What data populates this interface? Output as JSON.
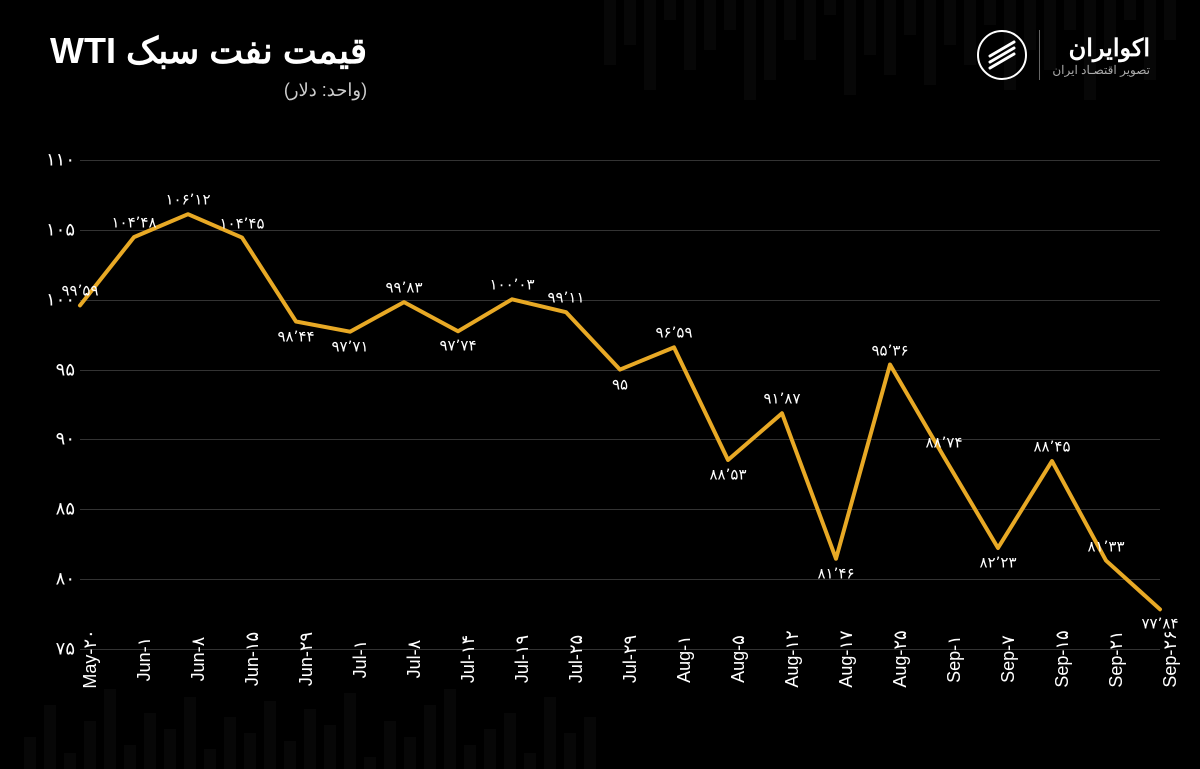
{
  "header": {
    "title": "قیمت نفت سبک WTI",
    "subtitle": "(واحد: دلار)",
    "brand_name": "اکوایران",
    "brand_tag": "تصویر اقتصـاد ایران"
  },
  "chart": {
    "type": "line",
    "line_color": "#e8a925",
    "line_width": 4,
    "background_color": "#000000",
    "grid_color": "#333333",
    "text_color": "#ffffff",
    "label_fontsize": 15,
    "tick_fontsize": 18,
    "ylim": [
      75,
      110
    ],
    "ytick_step": 5,
    "yticks_display": [
      "۷۵",
      "۸۰",
      "۸۵",
      "۹۰",
      "۹۵",
      "۱۰۰",
      "۱۰۵",
      "۱۱۰"
    ],
    "ytick_values": [
      75,
      80,
      85,
      90,
      95,
      100,
      105,
      110
    ],
    "categories": [
      "May-۲۰",
      "Jun-۱",
      "Jun-۸",
      "Jun-۱۵",
      "Jun-۲۹",
      "Jul-۱",
      "Jul-۸",
      "Jul-۱۴",
      "Jul-۱۹",
      "Jul-۲۵",
      "Jul-۲۹",
      "Aug-۱",
      "Aug-۵",
      "Aug-۱۲",
      "Aug-۱۷",
      "Aug-۲۵",
      "Sep-۱",
      "Sep-۷",
      "Sep-۱۵",
      "Sep-۲۱",
      "Sep-۲۶"
    ],
    "values": [
      99.59,
      104.48,
      106.12,
      104.45,
      98.44,
      97.71,
      99.83,
      97.74,
      100.03,
      99.11,
      95,
      96.59,
      88.53,
      91.87,
      81.46,
      95.36,
      88.74,
      82.23,
      88.45,
      81.33,
      77.84
    ],
    "value_labels": [
      "۹۹٬۵۹",
      "۱۰۴٬۴۸",
      "۱۰۶٬۱۲",
      "۱۰۴٬۴۵",
      "۹۸٬۴۴",
      "۹۷٬۷۱",
      "۹۹٬۸۳",
      "۹۷٬۷۴",
      "۱۰۰٬۰۳",
      "۹۹٬۱۱",
      "۹۵",
      "۹۶٬۵۹",
      "۸۸٬۵۳",
      "۹۱٬۸۷",
      "۸۱٬۴۶",
      "۹۵٬۳۶",
      "۸۸٬۷۴",
      "۸۲٬۲۳",
      "۸۸٬۴۵",
      "۸۱٬۳۳",
      "۷۷٬۸۴"
    ],
    "label_below": [
      false,
      false,
      false,
      false,
      true,
      true,
      false,
      true,
      false,
      false,
      true,
      false,
      true,
      false,
      true,
      false,
      false,
      true,
      false,
      false,
      true
    ]
  },
  "bg_bars": [
    40,
    80,
    20,
    60,
    100,
    30,
    70,
    50,
    90,
    25,
    65,
    45,
    85,
    35,
    75,
    55,
    95,
    15,
    60,
    40,
    80,
    100,
    30,
    50,
    70,
    20,
    90,
    45,
    65
  ]
}
